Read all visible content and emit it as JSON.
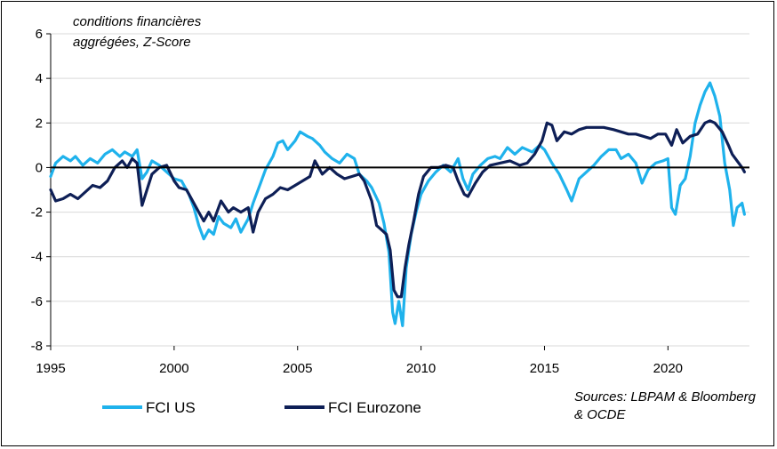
{
  "chart_data": {
    "type": "line",
    "title": "conditions financières aggrégées, Z-Score",
    "title_lines": [
      "conditions financières",
      "aggrégées, Z-Score"
    ],
    "source_lines": [
      "Sources: LBPAM & Bloomberg",
      "& OCDE"
    ],
    "xlim": [
      1995,
      2023.3
    ],
    "ylim": [
      -8,
      6
    ],
    "x_ticks": [
      1995,
      2000,
      2005,
      2010,
      2015,
      2020
    ],
    "y_ticks": [
      -8,
      -6,
      -4,
      -2,
      0,
      2,
      4,
      6
    ],
    "grid": "horizontal",
    "legend": "bottom-left",
    "series": [
      {
        "name": "FCI US",
        "color": "#1fb2ec",
        "points": [
          [
            1995.0,
            -0.4
          ],
          [
            1995.2,
            0.2
          ],
          [
            1995.5,
            0.5
          ],
          [
            1995.8,
            0.3
          ],
          [
            1996.0,
            0.5
          ],
          [
            1996.3,
            0.1
          ],
          [
            1996.6,
            0.4
          ],
          [
            1996.9,
            0.2
          ],
          [
            1997.2,
            0.6
          ],
          [
            1997.5,
            0.8
          ],
          [
            1997.8,
            0.5
          ],
          [
            1998.0,
            0.7
          ],
          [
            1998.3,
            0.5
          ],
          [
            1998.5,
            0.8
          ],
          [
            1998.7,
            -0.5
          ],
          [
            1998.9,
            -0.2
          ],
          [
            1999.1,
            0.3
          ],
          [
            1999.4,
            0.1
          ],
          [
            1999.7,
            -0.2
          ],
          [
            2000.0,
            -0.5
          ],
          [
            2000.3,
            -0.6
          ],
          [
            2000.6,
            -1.2
          ],
          [
            2000.8,
            -1.8
          ],
          [
            2001.0,
            -2.6
          ],
          [
            2001.2,
            -3.2
          ],
          [
            2001.4,
            -2.8
          ],
          [
            2001.6,
            -3.0
          ],
          [
            2001.8,
            -2.2
          ],
          [
            2002.0,
            -2.5
          ],
          [
            2002.3,
            -2.7
          ],
          [
            2002.5,
            -2.3
          ],
          [
            2002.7,
            -2.9
          ],
          [
            2003.0,
            -2.3
          ],
          [
            2003.2,
            -1.6
          ],
          [
            2003.5,
            -0.7
          ],
          [
            2003.7,
            -0.1
          ],
          [
            2004.0,
            0.5
          ],
          [
            2004.2,
            1.1
          ],
          [
            2004.4,
            1.2
          ],
          [
            2004.6,
            0.8
          ],
          [
            2004.9,
            1.2
          ],
          [
            2005.1,
            1.6
          ],
          [
            2005.4,
            1.4
          ],
          [
            2005.6,
            1.3
          ],
          [
            2005.9,
            1.0
          ],
          [
            2006.1,
            0.7
          ],
          [
            2006.4,
            0.4
          ],
          [
            2006.7,
            0.2
          ],
          [
            2007.0,
            0.6
          ],
          [
            2007.3,
            0.4
          ],
          [
            2007.5,
            -0.3
          ],
          [
            2007.8,
            -0.6
          ],
          [
            2008.0,
            -0.9
          ],
          [
            2008.3,
            -1.6
          ],
          [
            2008.5,
            -2.5
          ],
          [
            2008.7,
            -3.8
          ],
          [
            2008.85,
            -6.5
          ],
          [
            2008.95,
            -7.0
          ],
          [
            2009.1,
            -6.0
          ],
          [
            2009.25,
            -7.1
          ],
          [
            2009.4,
            -4.5
          ],
          [
            2009.6,
            -3.0
          ],
          [
            2009.8,
            -2.0
          ],
          [
            2010.0,
            -1.2
          ],
          [
            2010.3,
            -0.6
          ],
          [
            2010.6,
            -0.2
          ],
          [
            2010.9,
            0.1
          ],
          [
            2011.2,
            -0.2
          ],
          [
            2011.5,
            0.4
          ],
          [
            2011.7,
            -0.5
          ],
          [
            2011.9,
            -1.0
          ],
          [
            2012.1,
            -0.3
          ],
          [
            2012.4,
            0.1
          ],
          [
            2012.7,
            0.4
          ],
          [
            2013.0,
            0.5
          ],
          [
            2013.2,
            0.4
          ],
          [
            2013.5,
            0.9
          ],
          [
            2013.8,
            0.6
          ],
          [
            2014.1,
            0.9
          ],
          [
            2014.5,
            0.7
          ],
          [
            2014.8,
            1.0
          ],
          [
            2015.0,
            0.8
          ],
          [
            2015.3,
            0.2
          ],
          [
            2015.6,
            -0.3
          ],
          [
            2015.9,
            -1.0
          ],
          [
            2016.1,
            -1.5
          ],
          [
            2016.4,
            -0.5
          ],
          [
            2016.7,
            -0.2
          ],
          [
            2017.0,
            0.1
          ],
          [
            2017.3,
            0.5
          ],
          [
            2017.6,
            0.8
          ],
          [
            2017.9,
            0.8
          ],
          [
            2018.1,
            0.4
          ],
          [
            2018.4,
            0.6
          ],
          [
            2018.7,
            0.2
          ],
          [
            2018.95,
            -0.7
          ],
          [
            2019.2,
            -0.1
          ],
          [
            2019.5,
            0.2
          ],
          [
            2019.8,
            0.3
          ],
          [
            2020.0,
            0.4
          ],
          [
            2020.15,
            -1.8
          ],
          [
            2020.3,
            -2.1
          ],
          [
            2020.5,
            -0.8
          ],
          [
            2020.7,
            -0.5
          ],
          [
            2020.9,
            0.5
          ],
          [
            2021.1,
            2.0
          ],
          [
            2021.3,
            2.8
          ],
          [
            2021.5,
            3.4
          ],
          [
            2021.7,
            3.8
          ],
          [
            2021.9,
            3.2
          ],
          [
            2022.1,
            2.3
          ],
          [
            2022.3,
            0.2
          ],
          [
            2022.5,
            -1.0
          ],
          [
            2022.65,
            -2.6
          ],
          [
            2022.8,
            -1.8
          ],
          [
            2023.0,
            -1.6
          ],
          [
            2023.1,
            -2.1
          ]
        ]
      },
      {
        "name": "FCI Eurozone",
        "color": "#0e1f56",
        "points": [
          [
            1995.0,
            -1.0
          ],
          [
            1995.2,
            -1.5
          ],
          [
            1995.5,
            -1.4
          ],
          [
            1995.8,
            -1.2
          ],
          [
            1996.1,
            -1.4
          ],
          [
            1996.4,
            -1.1
          ],
          [
            1996.7,
            -0.8
          ],
          [
            1997.0,
            -0.9
          ],
          [
            1997.3,
            -0.6
          ],
          [
            1997.6,
            0.0
          ],
          [
            1997.9,
            0.3
          ],
          [
            1998.1,
            0.0
          ],
          [
            1998.3,
            0.4
          ],
          [
            1998.5,
            0.2
          ],
          [
            1998.7,
            -1.7
          ],
          [
            1998.9,
            -1.0
          ],
          [
            1999.1,
            -0.3
          ],
          [
            1999.4,
            0.0
          ],
          [
            1999.7,
            0.1
          ],
          [
            2000.0,
            -0.6
          ],
          [
            2000.2,
            -0.9
          ],
          [
            2000.5,
            -1.0
          ],
          [
            2000.7,
            -1.4
          ],
          [
            2001.0,
            -2.0
          ],
          [
            2001.2,
            -2.4
          ],
          [
            2001.4,
            -2.0
          ],
          [
            2001.6,
            -2.4
          ],
          [
            2001.9,
            -1.5
          ],
          [
            2002.2,
            -2.0
          ],
          [
            2002.4,
            -1.8
          ],
          [
            2002.7,
            -2.0
          ],
          [
            2003.0,
            -1.8
          ],
          [
            2003.2,
            -2.9
          ],
          [
            2003.4,
            -2.0
          ],
          [
            2003.7,
            -1.4
          ],
          [
            2004.0,
            -1.2
          ],
          [
            2004.3,
            -0.9
          ],
          [
            2004.6,
            -1.0
          ],
          [
            2004.9,
            -0.8
          ],
          [
            2005.2,
            -0.6
          ],
          [
            2005.5,
            -0.4
          ],
          [
            2005.7,
            0.3
          ],
          [
            2006.0,
            -0.3
          ],
          [
            2006.3,
            0.0
          ],
          [
            2006.6,
            -0.3
          ],
          [
            2006.9,
            -0.5
          ],
          [
            2007.2,
            -0.4
          ],
          [
            2007.5,
            -0.3
          ],
          [
            2007.7,
            -0.6
          ],
          [
            2008.0,
            -1.5
          ],
          [
            2008.2,
            -2.6
          ],
          [
            2008.4,
            -2.8
          ],
          [
            2008.6,
            -3.0
          ],
          [
            2008.75,
            -3.7
          ],
          [
            2008.9,
            -5.5
          ],
          [
            2009.05,
            -5.8
          ],
          [
            2009.2,
            -5.8
          ],
          [
            2009.35,
            -4.5
          ],
          [
            2009.5,
            -3.5
          ],
          [
            2009.7,
            -2.4
          ],
          [
            2009.9,
            -1.2
          ],
          [
            2010.1,
            -0.4
          ],
          [
            2010.4,
            0.0
          ],
          [
            2010.7,
            0.0
          ],
          [
            2011.0,
            0.1
          ],
          [
            2011.3,
            0.0
          ],
          [
            2011.5,
            -0.6
          ],
          [
            2011.75,
            -1.2
          ],
          [
            2011.9,
            -1.3
          ],
          [
            2012.2,
            -0.7
          ],
          [
            2012.5,
            -0.2
          ],
          [
            2012.8,
            0.1
          ],
          [
            2013.2,
            0.2
          ],
          [
            2013.6,
            0.3
          ],
          [
            2014.0,
            0.1
          ],
          [
            2014.3,
            0.2
          ],
          [
            2014.6,
            0.6
          ],
          [
            2014.9,
            1.2
          ],
          [
            2015.1,
            2.0
          ],
          [
            2015.3,
            1.9
          ],
          [
            2015.5,
            1.2
          ],
          [
            2015.8,
            1.6
          ],
          [
            2016.1,
            1.5
          ],
          [
            2016.4,
            1.7
          ],
          [
            2016.7,
            1.8
          ],
          [
            2017.0,
            1.8
          ],
          [
            2017.4,
            1.8
          ],
          [
            2017.8,
            1.7
          ],
          [
            2018.1,
            1.6
          ],
          [
            2018.4,
            1.5
          ],
          [
            2018.7,
            1.5
          ],
          [
            2019.0,
            1.4
          ],
          [
            2019.3,
            1.3
          ],
          [
            2019.6,
            1.5
          ],
          [
            2019.9,
            1.5
          ],
          [
            2020.15,
            1.0
          ],
          [
            2020.35,
            1.7
          ],
          [
            2020.6,
            1.1
          ],
          [
            2020.9,
            1.4
          ],
          [
            2021.2,
            1.5
          ],
          [
            2021.5,
            2.0
          ],
          [
            2021.7,
            2.1
          ],
          [
            2021.9,
            2.0
          ],
          [
            2022.2,
            1.6
          ],
          [
            2022.45,
            1.0
          ],
          [
            2022.6,
            0.6
          ],
          [
            2022.8,
            0.3
          ],
          [
            2023.0,
            0.0
          ],
          [
            2023.1,
            -0.2
          ]
        ]
      }
    ]
  }
}
